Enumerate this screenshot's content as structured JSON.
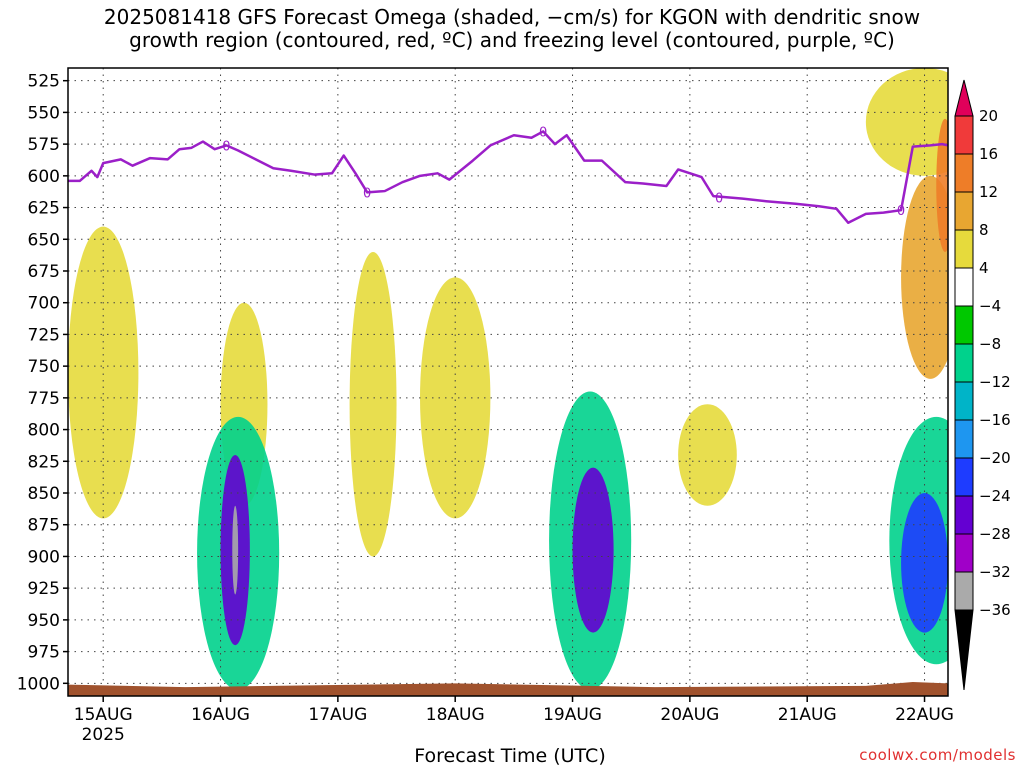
{
  "chart": {
    "title_line1": "2025081418 GFS Forecast Omega (shaded, −cm/s) for KGON with dendritic snow",
    "title_line2": "growth region (contoured, red, ºC) and freezing level (contoured, purple, ºC)",
    "xlabel": "Forecast Time (UTC)",
    "credit": "coolwx.com/models"
  },
  "chart_data": {
    "type": "heatmap",
    "yaxis": {
      "label": "",
      "ticks": [
        525,
        550,
        575,
        600,
        625,
        650,
        675,
        700,
        725,
        750,
        775,
        800,
        825,
        850,
        875,
        900,
        925,
        950,
        975,
        1000
      ],
      "range": [
        515,
        1010
      ]
    },
    "xaxis": {
      "ticks": [
        {
          "t": 0.3,
          "label": "15AUG",
          "sublabel": "2025"
        },
        {
          "t": 1.3,
          "label": "16AUG"
        },
        {
          "t": 2.3,
          "label": "17AUG"
        },
        {
          "t": 3.3,
          "label": "18AUG"
        },
        {
          "t": 4.3,
          "label": "19AUG"
        },
        {
          "t": 5.3,
          "label": "20AUG"
        },
        {
          "t": 6.3,
          "label": "21AUG"
        },
        {
          "t": 7.3,
          "label": "22AUG"
        }
      ],
      "range": [
        0,
        7.5
      ]
    },
    "colorbar": {
      "labels": [
        "20",
        "16",
        "12",
        "8",
        "4",
        "−4",
        "−8",
        "−12",
        "−16",
        "−20",
        "−24",
        "−28",
        "−32",
        "−36"
      ],
      "colors": [
        "#e0005a",
        "#f03a3a",
        "#ee7d28",
        "#e8a631",
        "#e6da3c",
        "#ffffff",
        "#00c800",
        "#00d28c",
        "#00b4c8",
        "#1e96f0",
        "#1e3cff",
        "#6400d2",
        "#a000c8",
        "#aaaaaa",
        "#000000"
      ]
    },
    "freezing_level": {
      "color": "#9b1fc8",
      "contour_label": "0",
      "points": [
        [
          0.0,
          604
        ],
        [
          0.1,
          604
        ],
        [
          0.2,
          596
        ],
        [
          0.25,
          601
        ],
        [
          0.3,
          590
        ],
        [
          0.45,
          587
        ],
        [
          0.55,
          592
        ],
        [
          0.7,
          586
        ],
        [
          0.85,
          587
        ],
        [
          0.95,
          579
        ],
        [
          1.05,
          578
        ],
        [
          1.15,
          573
        ],
        [
          1.25,
          579
        ],
        [
          1.35,
          576
        ],
        [
          1.45,
          580
        ],
        [
          1.6,
          587
        ],
        [
          1.75,
          594
        ],
        [
          1.9,
          596
        ],
        [
          2.1,
          599
        ],
        [
          2.25,
          598
        ],
        [
          2.35,
          584
        ],
        [
          2.45,
          598
        ],
        [
          2.55,
          613
        ],
        [
          2.7,
          612
        ],
        [
          2.85,
          605
        ],
        [
          3.0,
          600
        ],
        [
          3.15,
          598
        ],
        [
          3.25,
          603
        ],
        [
          3.45,
          588
        ],
        [
          3.6,
          576
        ],
        [
          3.8,
          568
        ],
        [
          3.95,
          570
        ],
        [
          4.05,
          565
        ],
        [
          4.15,
          575
        ],
        [
          4.25,
          568
        ],
        [
          4.4,
          588
        ],
        [
          4.55,
          588
        ],
        [
          4.75,
          605
        ],
        [
          4.9,
          606
        ],
        [
          5.1,
          608
        ],
        [
          5.2,
          595
        ],
        [
          5.4,
          601
        ],
        [
          5.5,
          616
        ],
        [
          5.75,
          618
        ],
        [
          5.95,
          620
        ],
        [
          6.2,
          622
        ],
        [
          6.4,
          624
        ],
        [
          6.55,
          626
        ],
        [
          6.65,
          637
        ],
        [
          6.8,
          630
        ],
        [
          6.95,
          629
        ],
        [
          7.1,
          627
        ],
        [
          7.2,
          577
        ],
        [
          7.35,
          576
        ],
        [
          7.45,
          575
        ],
        [
          7.55,
          577
        ],
        [
          7.6,
          600
        ],
        [
          7.8,
          600
        ]
      ]
    },
    "omega_regions": [
      {
        "level": "4",
        "t": [
          0.0,
          0.6
        ],
        "p": [
          640,
          870
        ]
      },
      {
        "level": "4",
        "t": [
          1.3,
          1.7
        ],
        "p": [
          700,
          860
        ]
      },
      {
        "level": "4",
        "t": [
          2.4,
          2.8
        ],
        "p": [
          660,
          900
        ]
      },
      {
        "level": "4",
        "t": [
          3.0,
          3.6
        ],
        "p": [
          680,
          870
        ]
      },
      {
        "level": "4",
        "t": [
          5.2,
          5.7
        ],
        "p": [
          780,
          860
        ]
      },
      {
        "level": "4",
        "t": [
          6.8,
          7.8
        ],
        "p": [
          515,
          600
        ]
      },
      {
        "level": "8",
        "t": [
          7.1,
          7.6
        ],
        "p": [
          600,
          760
        ]
      },
      {
        "level": "12",
        "t": [
          7.4,
          7.55
        ],
        "p": [
          555,
          660
        ]
      },
      {
        "level": "-8",
        "t": [
          1.1,
          1.8
        ],
        "p": [
          790,
          1005
        ]
      },
      {
        "level": "-24",
        "t": [
          1.3,
          1.55
        ],
        "p": [
          820,
          970
        ]
      },
      {
        "level": "-32",
        "t": [
          1.4,
          1.45
        ],
        "p": [
          860,
          930
        ]
      },
      {
        "level": "-8",
        "t": [
          4.1,
          4.8
        ],
        "p": [
          770,
          1005
        ]
      },
      {
        "level": "-24",
        "t": [
          4.3,
          4.65
        ],
        "p": [
          830,
          960
        ]
      },
      {
        "level": "-8",
        "t": [
          7.0,
          7.8
        ],
        "p": [
          790,
          985
        ]
      },
      {
        "level": "-20",
        "t": [
          7.1,
          7.5
        ],
        "p": [
          850,
          960
        ]
      }
    ]
  }
}
